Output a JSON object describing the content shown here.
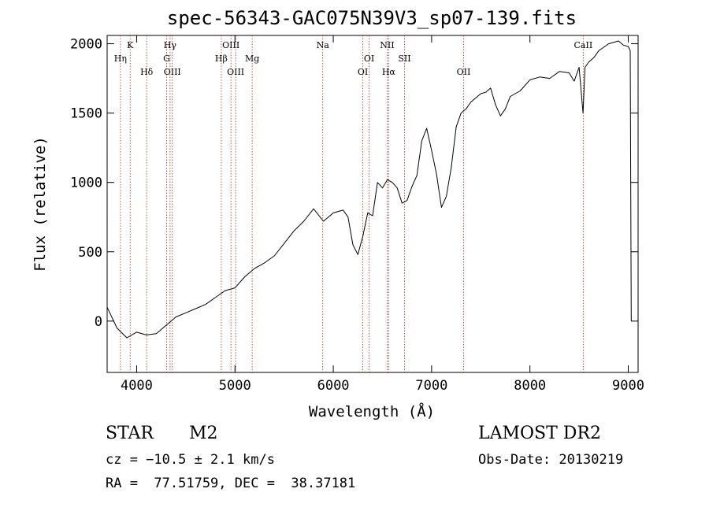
{
  "chart_data": {
    "type": "line",
    "title": "spec-56343-GAC075N39V3_sp07-139.fits",
    "xlabel": "Wavelength (Å)",
    "ylabel": "Flux (relative)",
    "xlim": [
      3700,
      9100
    ],
    "ylim": [
      -370,
      2060
    ],
    "x_ticks": [
      4000,
      5000,
      6000,
      7000,
      8000,
      9000
    ],
    "y_ticks": [
      0,
      500,
      1000,
      1500,
      2000
    ],
    "series": [
      {
        "color": "#000000",
        "x": [
          3700,
          3800,
          3900,
          4000,
          4100,
          4200,
          4300,
          4400,
          4500,
          4600,
          4700,
          4800,
          4900,
          5000,
          5100,
          5200,
          5300,
          5400,
          5500,
          5600,
          5700,
          5800,
          5900,
          6000,
          6100,
          6150,
          6200,
          6250,
          6300,
          6350,
          6400,
          6450,
          6500,
          6550,
          6600,
          6650,
          6700,
          6750,
          6800,
          6850,
          6900,
          6950,
          7000,
          7050,
          7100,
          7150,
          7200,
          7250,
          7300,
          7350,
          7400,
          7450,
          7500,
          7550,
          7600,
          7650,
          7700,
          7750,
          7800,
          7900,
          8000,
          8100,
          8200,
          8300,
          8400,
          8450,
          8500,
          8540,
          8560,
          8600,
          8650,
          8700,
          8800,
          8900,
          8950,
          9000,
          9020,
          9030
        ],
        "y": [
          100,
          -50,
          -120,
          -80,
          -100,
          -90,
          -30,
          30,
          60,
          90,
          120,
          170,
          220,
          240,
          320,
          380,
          420,
          470,
          560,
          650,
          720,
          810,
          720,
          780,
          800,
          750,
          550,
          480,
          610,
          780,
          760,
          1000,
          960,
          1020,
          1000,
          960,
          850,
          870,
          970,
          1050,
          1300,
          1390,
          1230,
          1060,
          820,
          900,
          1110,
          1400,
          1500,
          1530,
          1580,
          1610,
          1640,
          1650,
          1680,
          1560,
          1480,
          1530,
          1620,
          1660,
          1740,
          1760,
          1750,
          1800,
          1790,
          1730,
          1830,
          1500,
          1830,
          1870,
          1900,
          1950,
          2000,
          2020,
          1990,
          1980,
          1950,
          0
        ]
      }
    ],
    "lines": [
      {
        "label": "Hη",
        "x": 3835,
        "row": 2
      },
      {
        "label": "K",
        "x": 3934,
        "row": 1
      },
      {
        "label": "Hδ",
        "x": 4102,
        "row": 3
      },
      {
        "label": "Hγ",
        "x": 4340,
        "row": 1
      },
      {
        "label": "G",
        "x": 4305,
        "row": 2
      },
      {
        "label": "OIII",
        "x": 4363,
        "row": 3
      },
      {
        "label": "Hβ",
        "x": 4861,
        "row": 2
      },
      {
        "label": "OIII",
        "x": 4959,
        "row": 1
      },
      {
        "label": "OIII",
        "x": 5007,
        "row": 3
      },
      {
        "label": "Mg",
        "x": 5175,
        "row": 2
      },
      {
        "label": "Na",
        "x": 5893,
        "row": 1
      },
      {
        "label": "OI",
        "x": 6300,
        "row": 3
      },
      {
        "label": "OI",
        "x": 6364,
        "row": 2
      },
      {
        "label": "NII",
        "x": 6548,
        "row": 1
      },
      {
        "label": "Hα",
        "x": 6563,
        "row": 3
      },
      {
        "label": "SII",
        "x": 6724,
        "row": 2
      },
      {
        "label": "OII",
        "x": 7325,
        "row": 3
      },
      {
        "label": "CaII",
        "x": 8542,
        "row": 1
      }
    ]
  },
  "footer": {
    "class_label": "STAR",
    "subclass": "M2",
    "survey": "LAMOST DR2",
    "cz": "cz = −10.5 ± 2.1 km/s",
    "obs_date": "Obs-Date: 20130219",
    "radec": "RA =  77.51759, DEC =  38.37181"
  }
}
